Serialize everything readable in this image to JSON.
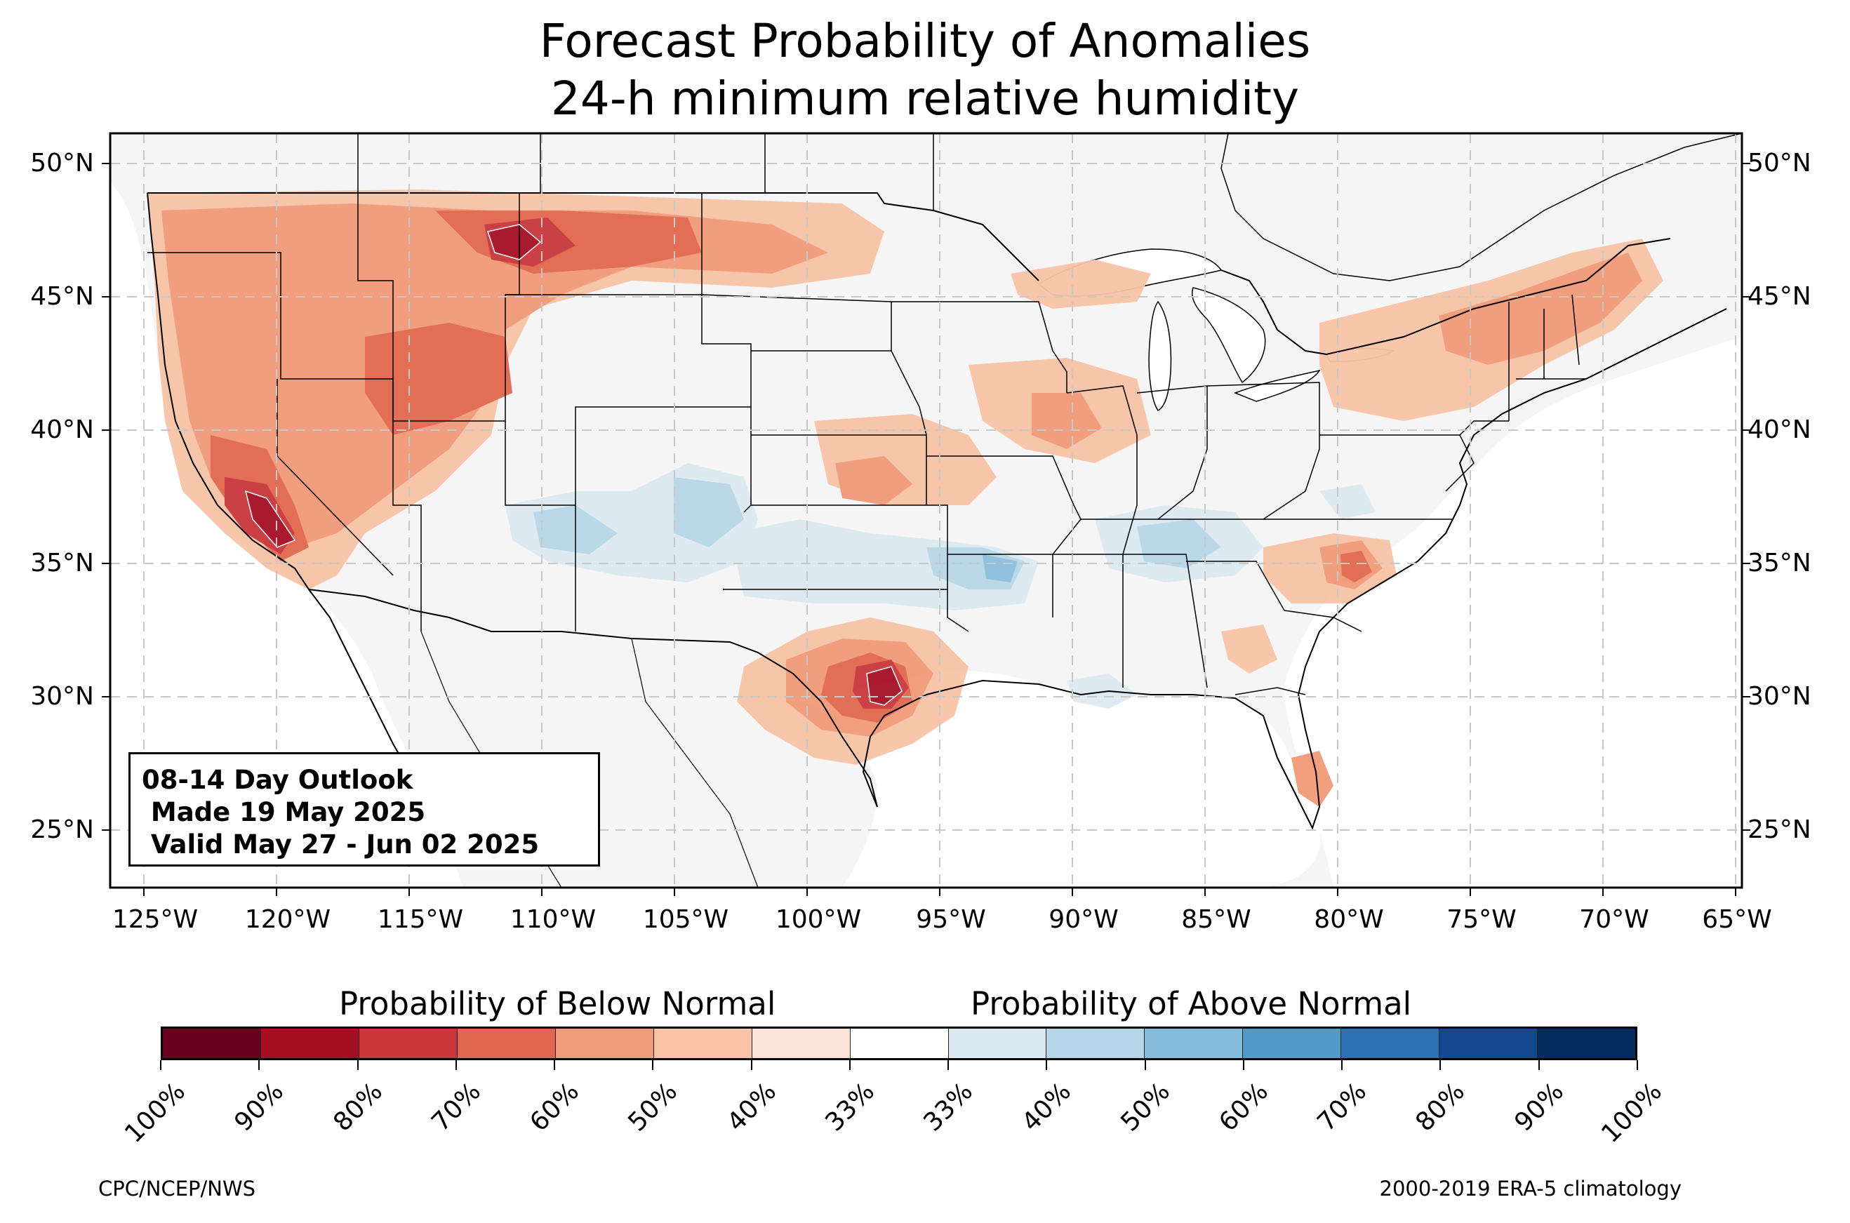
{
  "title_line1": "Forecast Probability of Anomalies",
  "title_line2": "24-h minimum relative humidity",
  "lat_labels": [
    "50°N",
    "45°N",
    "40°N",
    "35°N",
    "30°N",
    "25°N"
  ],
  "lon_labels": [
    "125°W",
    "120°W",
    "115°W",
    "110°W",
    "105°W",
    "100°W",
    "95°W",
    "90°W",
    "85°W",
    "80°W",
    "75°W",
    "70°W",
    "65°W"
  ],
  "outlook_box": {
    "line1": "08-14 Day Outlook",
    "line2": " Made 19 May 2025",
    "line3": " Valid May 27 - Jun 02 2025"
  },
  "colorbar": {
    "below_title": "Probability of Below Normal",
    "above_title": "Probability of Above Normal",
    "tick_labels": [
      "100%",
      "90%",
      "80%",
      "70%",
      "60%",
      "50%",
      "40%",
      "33%",
      "33%",
      "40%",
      "50%",
      "60%",
      "70%",
      "80%",
      "90%",
      "100%"
    ],
    "colors": [
      "#67001f",
      "#a50f24",
      "#c9373c",
      "#e0674d",
      "#f19a79",
      "#f8c3a7",
      "#fbe4d6",
      "#ffffff",
      "#dbe9f2",
      "#b5d5e8",
      "#86bcdb",
      "#519bc9",
      "#2b73b3",
      "#13488e",
      "#062b5f"
    ]
  },
  "map_colors": {
    "land": "#f5f5f5",
    "water": "#ffffff",
    "border": "#000000",
    "grid": "#c8c8c8"
  },
  "footer_left": "CPC/NCEP/NWS",
  "footer_right": "2000-2019 ERA-5 climatology"
}
